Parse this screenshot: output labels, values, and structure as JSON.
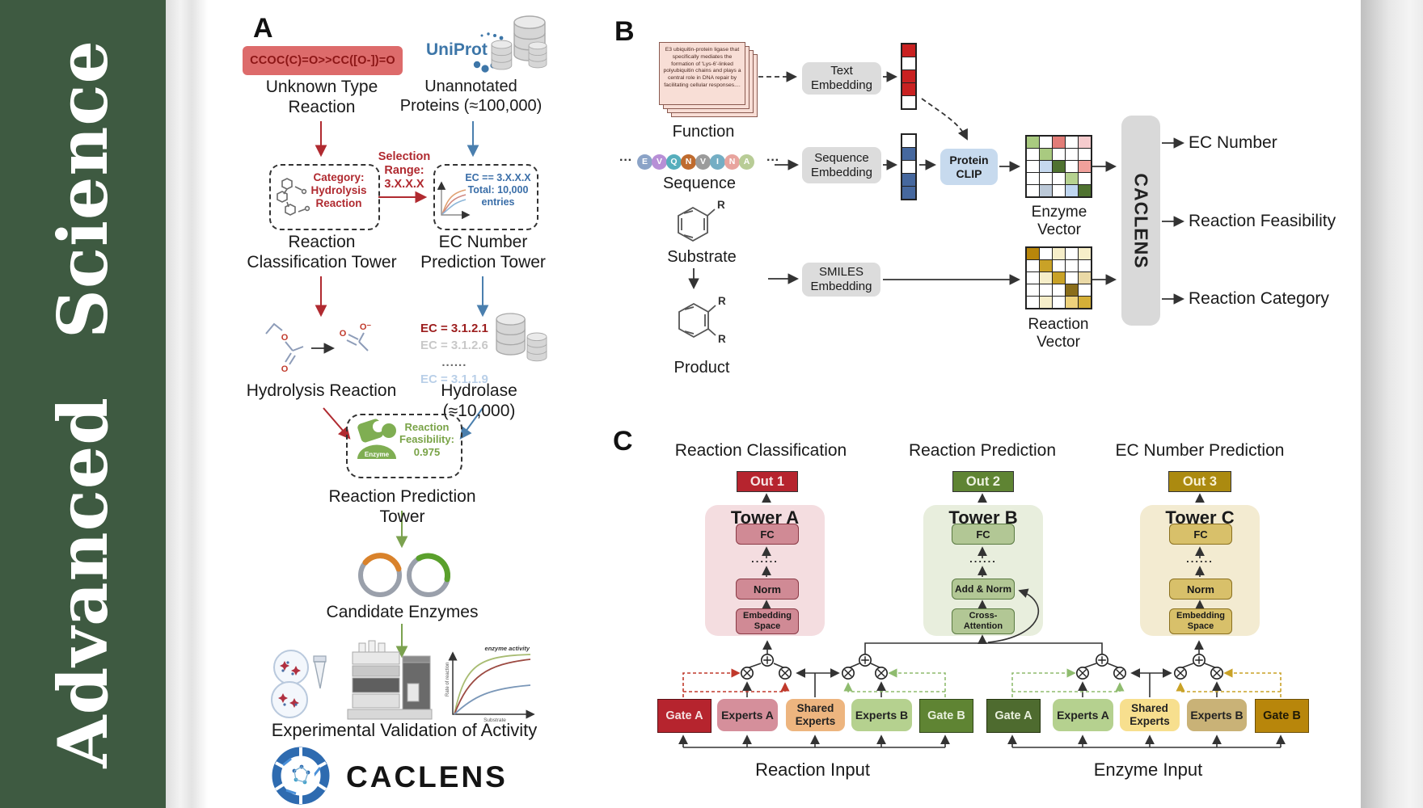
{
  "journal": {
    "name": "Advanced Science"
  },
  "colors": {
    "sidebar_green": "#3e5a41",
    "accent_red": "#b02a30",
    "accent_blue": "#4a7fae",
    "accent_green": "#7ba24f",
    "tower_a_pink": "#f4dde0",
    "tower_b_green": "#e8eedd",
    "tower_c_tan": "#f3ebd1",
    "out1": "#b6242e",
    "out2": "#5f8433",
    "out3": "#ab8a10"
  },
  "panel_a": {
    "label": "A",
    "smiles": "CCOC(C)=O>>CC([O-])=O",
    "unknown_type_reaction": "Unknown Type\nReaction",
    "uniprot": "UniProt",
    "unannotated_proteins": "Unannotated\nProteins (≈100,000)",
    "selection_range": "Selection\nRange:\n3.X.X.X",
    "category_box": "Category:\nHydrolysis\nReaction",
    "ec_box": "EC == 3.X.X.X\nTotal: 10,000\nentries",
    "reaction_classification_tower": "Reaction\nClassification Tower",
    "ec_number_prediction_tower": "EC Number\nPrediction Tower",
    "hydrolysis_reaction": "Hydrolysis Reaction",
    "ec_list": [
      "EC = 3.1.2.1",
      "EC = 3.1.2.6",
      "......",
      "EC = 3.1.1.9"
    ],
    "hydrolase": "Hydrolase (≈10,000)",
    "enzyme_badge": "Enzyme",
    "reaction_feasibility": "Reaction\nFeasibility:\n0.975",
    "reaction_prediction_tower": "Reaction Prediction Tower",
    "candidate_enzymes": "Candidate Enzymes",
    "experimental_validation": "Experimental Validation of Activity",
    "caclens_wordmark": "CACLENS",
    "activity_plot": {
      "curve_label": "enzyme activity",
      "ylabel": "Rate of reaction",
      "xlabel": "Substrate"
    },
    "atoms": {
      "o": "O",
      "o_minus": "O⁻"
    }
  },
  "panel_b": {
    "label": "B",
    "function_card": "E3 ubiquitin-protein ligase that specifically mediates the formation of 'Lys-6'-linked polyubiquitin chains and plays a central role in DNA repair by facilitating cellular responses....",
    "function": "Function",
    "text_embedding": "Text\nEmbedding",
    "ellipsis": "···",
    "residues": [
      {
        "ch": "E",
        "color": "#8ba3c7"
      },
      {
        "ch": "V",
        "color": "#b78fd6"
      },
      {
        "ch": "Q",
        "color": "#56aebc"
      },
      {
        "ch": "N",
        "color": "#bf6b2e"
      },
      {
        "ch": "V",
        "color": "#9b9b9b"
      },
      {
        "ch": "I",
        "color": "#74aec4"
      },
      {
        "ch": "N",
        "color": "#e8a49e"
      },
      {
        "ch": "A",
        "color": "#b8cc96"
      }
    ],
    "sequence": "Sequence",
    "sequence_embedding": "Sequence\nEmbedding",
    "protein_clip": "Protein\nCLIP",
    "enzyme_vector_label": "Enzyme Vector",
    "substrate": "Substrate",
    "product": "Product",
    "r_label": "R",
    "smiles_embedding": "SMILES\nEmbedding",
    "reaction_vector_label": "Reaction Vector",
    "caclens_block": "CACLENS",
    "outputs": [
      "EC Number",
      "Reaction Feasibility",
      "Reaction Category"
    ],
    "text_vector": [
      [
        "#c92121"
      ],
      [
        "#ffffff"
      ],
      [
        "#c92121"
      ],
      [
        "#c92121"
      ],
      [
        "#ffffff"
      ]
    ],
    "sequence_vector": [
      [
        "#ffffff"
      ],
      [
        "#46689e"
      ],
      [
        "#ffffff"
      ],
      [
        "#46689e"
      ],
      [
        "#46689e"
      ]
    ],
    "enzyme_vector": [
      [
        "#a9ca80",
        "#ffffff",
        "#e27d78",
        "#ffffff",
        "#f5cbcd"
      ],
      [
        "#ffffff",
        "#a9ca80",
        "#ffffff",
        "#ffffff",
        "#ffffff"
      ],
      [
        "#ffffff",
        "#c5d8ee",
        "#4f7230",
        "#ffffff",
        "#f0a09b"
      ],
      [
        "#ffffff",
        "#ffffff",
        "#ffffff",
        "#b6d290",
        "#ffffff"
      ],
      [
        "#ffffff",
        "#bcc9d8",
        "#ffffff",
        "#bfd6f0",
        "#4f7230"
      ]
    ],
    "reaction_vector": [
      [
        "#b8860b",
        "#ffffff",
        "#f6eec9",
        "#ffffff",
        "#f6eec9"
      ],
      [
        "#ffffff",
        "#c9a227",
        "#ffffff",
        "#ffffff",
        "#ffffff"
      ],
      [
        "#ffffff",
        "#f6eec9",
        "#c9a227",
        "#ffffff",
        "#ead9a6"
      ],
      [
        "#ffffff",
        "#ffffff",
        "#ffffff",
        "#8a6d1a",
        "#ffffff"
      ],
      [
        "#ffffff",
        "#f6eec9",
        "#ffffff",
        "#eed27c",
        "#d4af37"
      ]
    ]
  },
  "panel_c": {
    "label": "C",
    "headings": [
      "Reaction Classification",
      "Reaction Prediction",
      "EC Number Prediction"
    ],
    "outs": [
      "Out 1",
      "Out 2",
      "Out 3"
    ],
    "dots": "......",
    "towers": [
      {
        "name": "Tower A",
        "fc": "FC",
        "mid": "Norm",
        "bottom": "Embedding\nSpace"
      },
      {
        "name": "Tower B",
        "fc": "FC",
        "mid": "Add & Norm",
        "bottom": "Cross-\nAttention"
      },
      {
        "name": "Tower C",
        "fc": "FC",
        "mid": "Norm",
        "bottom": "Embedding\nSpace"
      }
    ],
    "reaction_group": {
      "gate_a": "Gate A",
      "experts_a": "Experts A",
      "shared": "Shared\nExperts",
      "experts_b": "Experts B",
      "gate_b": "Gate B",
      "input": "Reaction Input"
    },
    "enzyme_group": {
      "gate_a": "Gate A",
      "experts_a": "Experts A",
      "shared": "Shared\nExperts",
      "experts_b": "Experts B",
      "gate_b": "Gate B",
      "input": "Enzyme Input"
    }
  }
}
